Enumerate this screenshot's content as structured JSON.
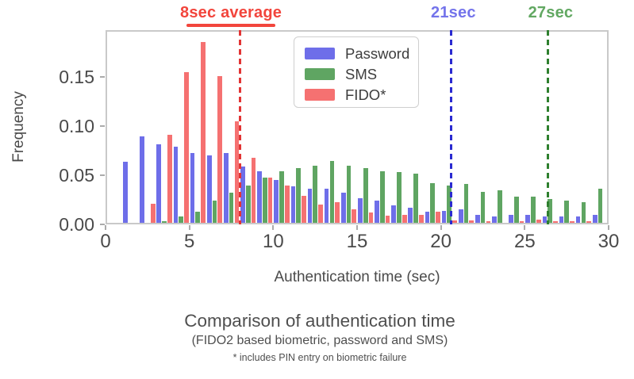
{
  "figure": {
    "caption_title": "Comparison of authentication time",
    "caption_subtitle": "(FIDO2 based biometric, password and SMS)",
    "caption_note": "* includes PIN entry on biometric failure"
  },
  "chart_data": {
    "type": "bar",
    "title": "",
    "xlabel": "Authentication time (sec)",
    "ylabel": "Frequency",
    "xlim": [
      0,
      30
    ],
    "ylim": [
      0,
      0.198
    ],
    "grid": false,
    "legend_position": "upper-left-inside",
    "x_ticks": [
      0,
      5,
      10,
      15,
      20,
      25,
      30
    ],
    "y_ticks": [
      "0.00",
      "0.05",
      "0.10",
      "0.15"
    ],
    "y_tick_values": [
      0,
      0.05,
      0.1,
      0.15
    ],
    "bin_width": 1,
    "bin_starts": [
      1,
      2,
      3,
      4,
      5,
      6,
      7,
      8,
      9,
      10,
      11,
      12,
      13,
      14,
      15,
      16,
      17,
      18,
      19,
      20,
      21,
      22,
      23,
      24,
      25,
      26,
      27,
      28,
      29
    ],
    "series": [
      {
        "name": "Password",
        "color": "#6e6ee9",
        "values": [
          0.064,
          0.09,
          0.082,
          0.079,
          0.073,
          0.07,
          0.073,
          0.059,
          0.054,
          0.045,
          0.039,
          0.036,
          0.036,
          0.032,
          0.027,
          0.024,
          0.019,
          0.017,
          0.013,
          0.014,
          0.015,
          0.01,
          0.008,
          0.01,
          0.01,
          0.008,
          0.008,
          0.008,
          0.01
        ]
      },
      {
        "name": "SMS",
        "color": "#5fa562",
        "values": [
          0,
          0,
          0.003,
          0.008,
          0.013,
          0.024,
          0.032,
          0.04,
          0.048,
          0.054,
          0.057,
          0.06,
          0.065,
          0.06,
          0.057,
          0.054,
          0.053,
          0.052,
          0.042,
          0.04,
          0.041,
          0.033,
          0.035,
          0.028,
          0.028,
          0.026,
          0.024,
          0.023,
          0.036
        ]
      },
      {
        "name": "FIDO*",
        "color": "#f57171",
        "values": [
          0,
          0.021,
          0.091,
          0.155,
          0.186,
          0.151,
          0.105,
          0.068,
          0.048,
          0.04,
          0.029,
          0.02,
          0.023,
          0.015,
          0.012,
          0.009,
          0.01,
          0.01,
          0.013,
          0.004,
          0.004,
          0.003,
          0.002,
          0.003,
          0.005,
          0.003,
          0.003,
          0.003,
          0
        ]
      }
    ],
    "annotations": [
      {
        "label": "8sec average",
        "x": 8.0,
        "text_color": "#f2453c",
        "line_color": "#e23434",
        "underline": true
      },
      {
        "label": "21sec",
        "x": 20.6,
        "text_color": "#7474eb",
        "line_color": "#2a2ad0",
        "underline": false
      },
      {
        "label": "27sec",
        "x": 26.4,
        "text_color": "#62a862",
        "line_color": "#2e7f2e",
        "underline": false
      }
    ]
  }
}
